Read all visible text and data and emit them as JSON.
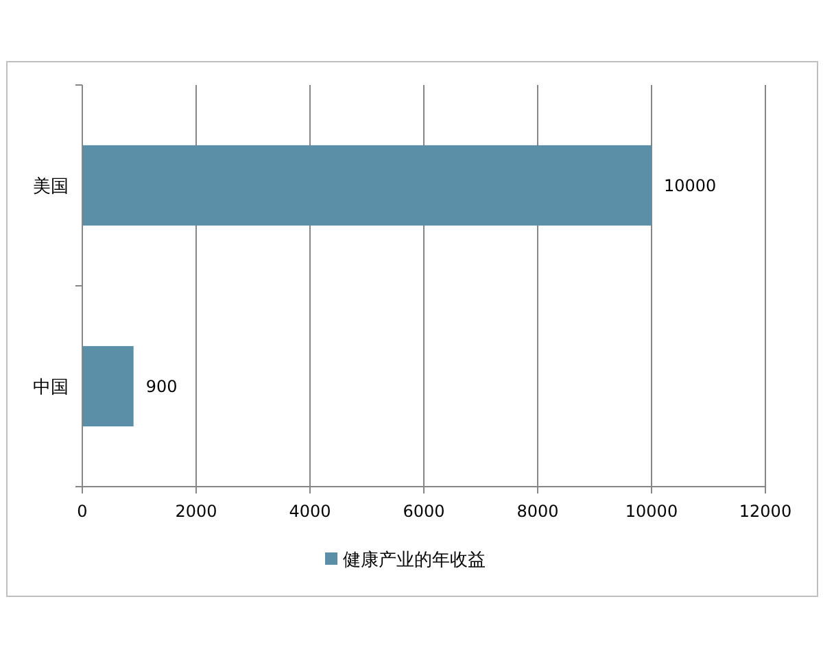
{
  "chart_data": {
    "type": "bar",
    "orientation": "horizontal",
    "categories": [
      "美国",
      "中国"
    ],
    "series": [
      {
        "name": "健康产业的年收益",
        "color": "#5b8fa8",
        "values": [
          10000,
          900
        ]
      }
    ],
    "xlim": [
      0,
      12000
    ],
    "xticks": [
      0,
      2000,
      4000,
      6000,
      8000,
      10000,
      12000
    ],
    "grid": "x",
    "legend": "bottom",
    "data_labels": true
  }
}
